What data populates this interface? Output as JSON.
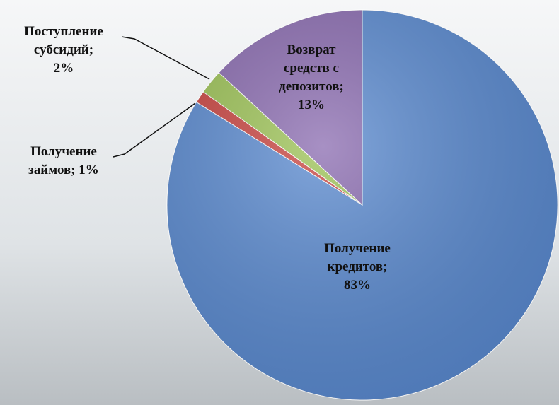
{
  "chart_data": {
    "type": "pie",
    "categories": [
      "Получение кредитов",
      "Получение займов",
      "Поступление субсидий",
      "Возврат средств с депозитов"
    ],
    "values": [
      83,
      1,
      2,
      13
    ],
    "value_labels": [
      "Получение кредитов; 83%",
      "Получение займов; 1%",
      "Поступление субсидий; 2%",
      "Возврат средств с депозитов; 13%"
    ],
    "colors": [
      "#5a8ad0",
      "#c9433f",
      "#9cc255",
      "#8a6bb0"
    ]
  }
}
